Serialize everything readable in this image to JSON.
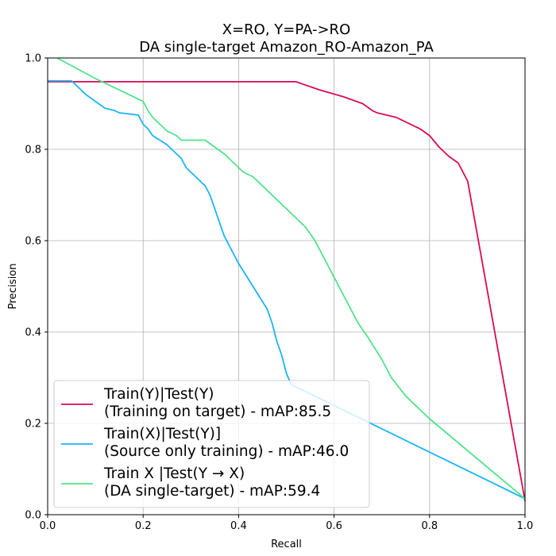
{
  "chart_data": {
    "type": "line",
    "title": [
      "X=RO, Y=PA->RO",
      "DA single-target Amazon_RO-Amazon_PA"
    ],
    "xlabel": "Recall",
    "ylabel": "Precision",
    "xlim": [
      0,
      1
    ],
    "ylim": [
      0,
      1
    ],
    "xticks": [
      "0.0",
      "0.2",
      "0.4",
      "0.6",
      "0.8",
      "1.0"
    ],
    "yticks": [
      "0.0",
      "0.2",
      "0.4",
      "0.6",
      "0.8",
      "1.0"
    ],
    "grid": true,
    "legend_position": "lower-left",
    "series": [
      {
        "name": "Train(Y)|Test(Y)\n(Training on target) - mAP:85.5",
        "color": "#dc0a50",
        "x": [
          0,
          0.52,
          0.57,
          0.62,
          0.66,
          0.68,
          0.69,
          0.73,
          0.76,
          0.78,
          0.8,
          0.82,
          0.84,
          0.86,
          0.88,
          1.0
        ],
        "y": [
          0.948,
          0.948,
          0.93,
          0.915,
          0.9,
          0.885,
          0.88,
          0.87,
          0.855,
          0.845,
          0.83,
          0.805,
          0.785,
          0.77,
          0.73,
          0.03
        ]
      },
      {
        "name": "Train(X)|Test(Y)]\n(Source only training) - mAP:46.0",
        "color": "#1ab4f5",
        "x": [
          0,
          0.05,
          0.08,
          0.12,
          0.14,
          0.15,
          0.19,
          0.2,
          0.21,
          0.22,
          0.25,
          0.27,
          0.28,
          0.29,
          0.3,
          0.33,
          0.34,
          0.35,
          0.36,
          0.37,
          0.38,
          0.39,
          0.4,
          0.43,
          0.46,
          0.47,
          0.48,
          0.49,
          0.5,
          0.51,
          1.0
        ],
        "y": [
          0.95,
          0.95,
          0.92,
          0.89,
          0.885,
          0.88,
          0.875,
          0.855,
          0.845,
          0.83,
          0.81,
          0.79,
          0.78,
          0.76,
          0.75,
          0.72,
          0.7,
          0.67,
          0.64,
          0.61,
          0.59,
          0.57,
          0.55,
          0.5,
          0.45,
          0.42,
          0.38,
          0.35,
          0.31,
          0.285,
          0.035
        ]
      },
      {
        "name": "Train X |Test(Y → X)\n(DA single-target) - mAP:59.4",
        "color": "#4ee38a",
        "x": [
          0.02,
          0.1,
          0.2,
          0.21,
          0.22,
          0.24,
          0.25,
          0.27,
          0.28,
          0.3,
          0.33,
          0.35,
          0.37,
          0.39,
          0.41,
          0.43,
          0.44,
          0.46,
          0.49,
          0.52,
          0.54,
          0.56,
          0.58,
          0.6,
          0.62,
          0.64,
          0.65,
          0.67,
          0.7,
          0.72,
          0.75,
          0.8,
          1.0
        ],
        "y": [
          1.0,
          0.955,
          0.905,
          0.885,
          0.87,
          0.85,
          0.84,
          0.83,
          0.82,
          0.82,
          0.82,
          0.805,
          0.79,
          0.77,
          0.75,
          0.74,
          0.73,
          0.71,
          0.68,
          0.65,
          0.63,
          0.6,
          0.56,
          0.52,
          0.48,
          0.44,
          0.42,
          0.39,
          0.34,
          0.3,
          0.26,
          0.21,
          0.035
        ]
      }
    ]
  }
}
